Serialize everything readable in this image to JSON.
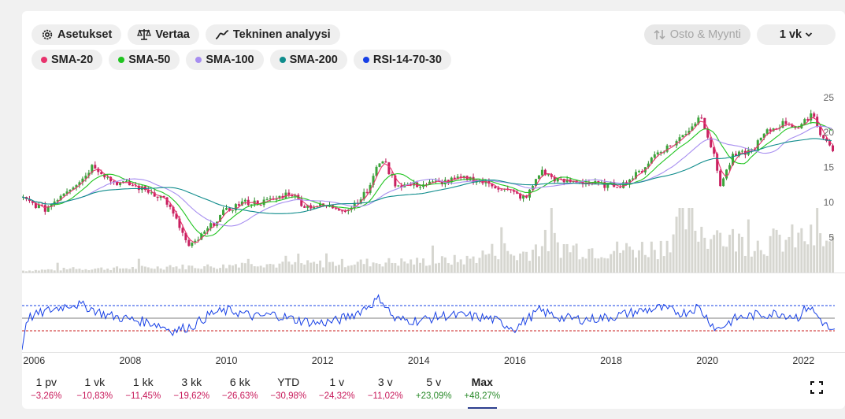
{
  "toolbar": {
    "settings_label": "Asetukset",
    "compare_label": "Vertaa",
    "technical_label": "Tekninen analyysi",
    "trade_label": "Osto & Myynti",
    "interval_label": "1 vk"
  },
  "indicators": [
    {
      "label": "SMA-20",
      "color": "#e8336d"
    },
    {
      "label": "SMA-50",
      "color": "#1fc41f"
    },
    {
      "label": "SMA-100",
      "color": "#a78ef0"
    },
    {
      "label": "SMA-200",
      "color": "#0f8c8c"
    },
    {
      "label": "RSI-14-70-30",
      "color": "#1740e6"
    }
  ],
  "chart_data": {
    "type": "line",
    "price_axis": {
      "ticks": [
        "25",
        "20",
        "15",
        "10",
        "5"
      ],
      "values": [
        25,
        20,
        15,
        10,
        5
      ]
    },
    "x_ticks": [
      "2006",
      "2008",
      "2010",
      "2012",
      "2014",
      "2016",
      "2018",
      "2020",
      "2022"
    ],
    "x_range": [
      2005.75,
      2022.65
    ],
    "price_range": [
      0,
      27
    ],
    "price_points": [
      [
        2005.75,
        10.5
      ],
      [
        2006.2,
        9.0
      ],
      [
        2006.6,
        11.5
      ],
      [
        2007.0,
        13.5
      ],
      [
        2007.2,
        15.4
      ],
      [
        2007.6,
        13.0
      ],
      [
        2008.0,
        12.5
      ],
      [
        2008.4,
        11.5
      ],
      [
        2008.7,
        10.5
      ],
      [
        2009.0,
        6.5
      ],
      [
        2009.2,
        3.5
      ],
      [
        2009.5,
        5.5
      ],
      [
        2009.9,
        8.5
      ],
      [
        2010.3,
        10.0
      ],
      [
        2010.7,
        10.0
      ],
      [
        2011.0,
        10.5
      ],
      [
        2011.3,
        11.5
      ],
      [
        2011.6,
        9.5
      ],
      [
        2012.0,
        9.5
      ],
      [
        2012.5,
        9.0
      ],
      [
        2012.9,
        11.5
      ],
      [
        2013.2,
        16.5
      ],
      [
        2013.5,
        12.5
      ],
      [
        2014.0,
        12.5
      ],
      [
        2014.5,
        13.0
      ],
      [
        2015.0,
        13.5
      ],
      [
        2015.5,
        12.5
      ],
      [
        2015.9,
        11.5
      ],
      [
        2016.2,
        10.5
      ],
      [
        2016.5,
        14.5
      ],
      [
        2016.9,
        13.0
      ],
      [
        2017.3,
        13.0
      ],
      [
        2017.8,
        12.5
      ],
      [
        2018.2,
        12.5
      ],
      [
        2018.6,
        14.5
      ],
      [
        2018.9,
        17.0
      ],
      [
        2019.3,
        18.5
      ],
      [
        2019.6,
        20.5
      ],
      [
        2019.85,
        22.5
      ],
      [
        2020.1,
        17.0
      ],
      [
        2020.25,
        12.5
      ],
      [
        2020.5,
        16.5
      ],
      [
        2020.9,
        17.5
      ],
      [
        2021.2,
        20.0
      ],
      [
        2021.6,
        21.5
      ],
      [
        2021.9,
        20.5
      ],
      [
        2022.15,
        23.0
      ],
      [
        2022.35,
        19.5
      ],
      [
        2022.6,
        17.5
      ]
    ],
    "volume_points": [
      [
        2005.75,
        0.3
      ],
      [
        2006.5,
        0.5
      ],
      [
        2007.0,
        0.6
      ],
      [
        2008.0,
        0.7
      ],
      [
        2009.0,
        0.9
      ],
      [
        2010.0,
        1.0
      ],
      [
        2010.4,
        1.8
      ],
      [
        2011.0,
        1.2
      ],
      [
        2012.0,
        1.4
      ],
      [
        2013.0,
        1.6
      ],
      [
        2014.0,
        1.7
      ],
      [
        2015.0,
        2.0
      ],
      [
        2015.7,
        3.8
      ],
      [
        2016.0,
        2.5
      ],
      [
        2016.7,
        5.0
      ],
      [
        2017.0,
        4.0
      ],
      [
        2018.0,
        3.5
      ],
      [
        2019.0,
        4.0
      ],
      [
        2019.5,
        8.5
      ],
      [
        2020.0,
        6.0
      ],
      [
        2020.6,
        5.0
      ],
      [
        2021.0,
        4.5
      ],
      [
        2022.0,
        5.5
      ],
      [
        2022.6,
        4.5
      ]
    ],
    "rsi_levels": {
      "upper": 70,
      "lower": 30
    },
    "rsi_points": [
      [
        2005.75,
        0
      ],
      [
        2005.85,
        50
      ],
      [
        2006.3,
        62
      ],
      [
        2006.8,
        73
      ],
      [
        2007.1,
        68
      ],
      [
        2007.5,
        55
      ],
      [
        2008.0,
        48
      ],
      [
        2008.5,
        42
      ],
      [
        2008.9,
        30
      ],
      [
        2009.3,
        38
      ],
      [
        2009.7,
        58
      ],
      [
        2010.1,
        62
      ],
      [
        2010.6,
        52
      ],
      [
        2011.0,
        56
      ],
      [
        2011.4,
        48
      ],
      [
        2011.9,
        42
      ],
      [
        2012.3,
        46
      ],
      [
        2012.7,
        58
      ],
      [
        2013.0,
        72
      ],
      [
        2013.2,
        82
      ],
      [
        2013.5,
        48
      ],
      [
        2014.0,
        46
      ],
      [
        2014.5,
        54
      ],
      [
        2015.0,
        54
      ],
      [
        2015.5,
        49
      ],
      [
        2016.0,
        34
      ],
      [
        2016.5,
        62
      ],
      [
        2017.0,
        50
      ],
      [
        2017.5,
        48
      ],
      [
        2018.0,
        52
      ],
      [
        2018.5,
        60
      ],
      [
        2019.0,
        66
      ],
      [
        2019.5,
        58
      ],
      [
        2019.8,
        68
      ],
      [
        2020.2,
        32
      ],
      [
        2020.6,
        50
      ],
      [
        2021.0,
        55
      ],
      [
        2021.5,
        58
      ],
      [
        2021.9,
        52
      ],
      [
        2022.1,
        70
      ],
      [
        2022.4,
        44
      ],
      [
        2022.6,
        28
      ]
    ]
  },
  "periods": [
    {
      "label": "1 pv",
      "change": "−3,26%",
      "positive": false
    },
    {
      "label": "1 vk",
      "change": "−10,83%",
      "positive": false
    },
    {
      "label": "1 kk",
      "change": "−11,45%",
      "positive": false
    },
    {
      "label": "3 kk",
      "change": "−19,62%",
      "positive": false
    },
    {
      "label": "6 kk",
      "change": "−26,63%",
      "positive": false
    },
    {
      "label": "YTD",
      "change": "−30,98%",
      "positive": false
    },
    {
      "label": "1 v",
      "change": "−24,32%",
      "positive": false
    },
    {
      "label": "3 v",
      "change": "−11,02%",
      "positive": false
    },
    {
      "label": "5 v",
      "change": "+23,09%",
      "positive": true
    },
    {
      "label": "Max",
      "change": "+48,27%",
      "positive": true,
      "active": true
    }
  ],
  "fullscreen_icon": "expand-icon"
}
